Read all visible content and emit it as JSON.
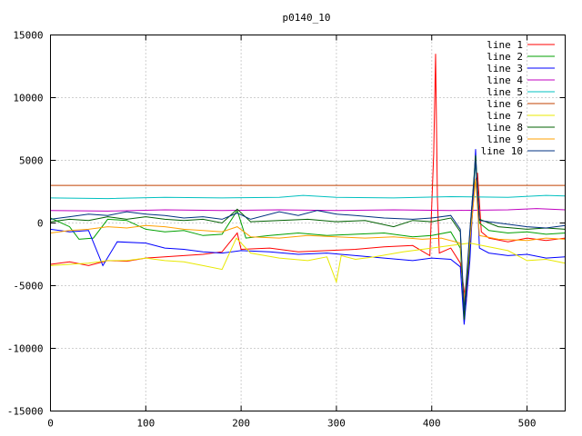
{
  "chart_data": {
    "type": "line",
    "title": "p0140_10",
    "xlabel": "",
    "ylabel": "",
    "xlim": [
      0,
      540
    ],
    "ylim": [
      -15000,
      15000
    ],
    "xticks": [
      0,
      100,
      200,
      300,
      400,
      500
    ],
    "yticks": [
      -15000,
      -10000,
      -5000,
      0,
      5000,
      10000,
      15000
    ],
    "grid": true,
    "legend_position": "top-right",
    "series": [
      {
        "name": "line 1",
        "color": "#ff0000",
        "points": [
          [
            0,
            -3300
          ],
          [
            20,
            -3100
          ],
          [
            40,
            -3400
          ],
          [
            60,
            -3000
          ],
          [
            80,
            -3050
          ],
          [
            100,
            -2800
          ],
          [
            120,
            -2700
          ],
          [
            140,
            -2600
          ],
          [
            160,
            -2500
          ],
          [
            180,
            -2300
          ],
          [
            196,
            -800
          ],
          [
            200,
            -2100
          ],
          [
            230,
            -2000
          ],
          [
            260,
            -2300
          ],
          [
            290,
            -2200
          ],
          [
            320,
            -2100
          ],
          [
            350,
            -1900
          ],
          [
            380,
            -1800
          ],
          [
            398,
            -2600
          ],
          [
            402,
            5500
          ],
          [
            404,
            13500
          ],
          [
            406,
            2000
          ],
          [
            408,
            -2400
          ],
          [
            420,
            -2000
          ],
          [
            430,
            -3200
          ],
          [
            436,
            -6500
          ],
          [
            440,
            -2000
          ],
          [
            445,
            3000
          ],
          [
            448,
            4000
          ],
          [
            452,
            -700
          ],
          [
            460,
            -1200
          ],
          [
            480,
            -1500
          ],
          [
            500,
            -1200
          ],
          [
            520,
            -1400
          ],
          [
            540,
            -1200
          ]
        ]
      },
      {
        "name": "line 2",
        "color": "#00a000",
        "points": [
          [
            0,
            400
          ],
          [
            20,
            -300
          ],
          [
            30,
            -1300
          ],
          [
            45,
            -1200
          ],
          [
            60,
            300
          ],
          [
            80,
            200
          ],
          [
            100,
            -500
          ],
          [
            120,
            -700
          ],
          [
            140,
            -600
          ],
          [
            160,
            -1000
          ],
          [
            180,
            -900
          ],
          [
            196,
            1000
          ],
          [
            205,
            -1200
          ],
          [
            230,
            -1000
          ],
          [
            260,
            -800
          ],
          [
            290,
            -1000
          ],
          [
            320,
            -900
          ],
          [
            350,
            -800
          ],
          [
            380,
            -1100
          ],
          [
            400,
            -1000
          ],
          [
            420,
            -700
          ],
          [
            430,
            -2000
          ],
          [
            434,
            -7000
          ],
          [
            440,
            -2000
          ],
          [
            446,
            5000
          ],
          [
            450,
            0
          ],
          [
            460,
            -600
          ],
          [
            480,
            -800
          ],
          [
            500,
            -700
          ],
          [
            520,
            -900
          ],
          [
            540,
            -800
          ]
        ]
      },
      {
        "name": "line 3",
        "color": "#0000ff",
        "points": [
          [
            0,
            -500
          ],
          [
            20,
            -700
          ],
          [
            40,
            -600
          ],
          [
            55,
            -3400
          ],
          [
            70,
            -1500
          ],
          [
            100,
            -1600
          ],
          [
            120,
            -2000
          ],
          [
            140,
            -2100
          ],
          [
            160,
            -2300
          ],
          [
            180,
            -2400
          ],
          [
            200,
            -2200
          ],
          [
            230,
            -2300
          ],
          [
            260,
            -2500
          ],
          [
            290,
            -2400
          ],
          [
            320,
            -2600
          ],
          [
            350,
            -2800
          ],
          [
            380,
            -3000
          ],
          [
            400,
            -2800
          ],
          [
            420,
            -2900
          ],
          [
            430,
            -3500
          ],
          [
            434,
            -8100
          ],
          [
            440,
            -3000
          ],
          [
            446,
            5900
          ],
          [
            450,
            -2000
          ],
          [
            460,
            -2400
          ],
          [
            480,
            -2600
          ],
          [
            500,
            -2500
          ],
          [
            520,
            -2800
          ],
          [
            540,
            -2700
          ]
        ]
      },
      {
        "name": "line 4",
        "color": "#c000c0",
        "points": [
          [
            0,
            1000
          ],
          [
            60,
            950
          ],
          [
            120,
            1050
          ],
          [
            180,
            1000
          ],
          [
            240,
            1050
          ],
          [
            300,
            1000
          ],
          [
            360,
            1050
          ],
          [
            420,
            1000
          ],
          [
            480,
            1050
          ],
          [
            510,
            1150
          ],
          [
            540,
            1050
          ]
        ]
      },
      {
        "name": "line 5",
        "color": "#00c0c0",
        "points": [
          [
            0,
            2000
          ],
          [
            60,
            1950
          ],
          [
            120,
            2050
          ],
          [
            180,
            2000
          ],
          [
            240,
            2050
          ],
          [
            265,
            2200
          ],
          [
            300,
            2050
          ],
          [
            360,
            2000
          ],
          [
            420,
            2100
          ],
          [
            480,
            2050
          ],
          [
            520,
            2200
          ],
          [
            540,
            2150
          ]
        ]
      },
      {
        "name": "line 6",
        "color": "#c04000",
        "points": [
          [
            0,
            3000
          ],
          [
            540,
            3000
          ]
        ]
      },
      {
        "name": "line 7",
        "color": "#e8e800",
        "points": [
          [
            0,
            -3400
          ],
          [
            20,
            -3300
          ],
          [
            40,
            -3200
          ],
          [
            60,
            -3000
          ],
          [
            80,
            -3000
          ],
          [
            100,
            -2800
          ],
          [
            120,
            -3000
          ],
          [
            140,
            -3100
          ],
          [
            160,
            -3400
          ],
          [
            180,
            -3700
          ],
          [
            195,
            -1200
          ],
          [
            210,
            -2400
          ],
          [
            240,
            -2800
          ],
          [
            270,
            -3000
          ],
          [
            290,
            -2700
          ],
          [
            300,
            -4700
          ],
          [
            305,
            -2600
          ],
          [
            320,
            -2900
          ],
          [
            340,
            -2700
          ],
          [
            370,
            -2300
          ],
          [
            400,
            -2000
          ],
          [
            420,
            -1800
          ],
          [
            440,
            -1600
          ],
          [
            460,
            -1900
          ],
          [
            480,
            -2200
          ],
          [
            500,
            -3000
          ],
          [
            520,
            -2900
          ],
          [
            540,
            -3200
          ]
        ]
      },
      {
        "name": "line 8",
        "color": "#006000",
        "points": [
          [
            0,
            100
          ],
          [
            20,
            300
          ],
          [
            40,
            200
          ],
          [
            60,
            500
          ],
          [
            80,
            300
          ],
          [
            100,
            500
          ],
          [
            120,
            300
          ],
          [
            140,
            200
          ],
          [
            160,
            300
          ],
          [
            180,
            0
          ],
          [
            196,
            1100
          ],
          [
            210,
            100
          ],
          [
            240,
            200
          ],
          [
            270,
            300
          ],
          [
            300,
            100
          ],
          [
            330,
            200
          ],
          [
            360,
            -300
          ],
          [
            380,
            200
          ],
          [
            400,
            100
          ],
          [
            420,
            400
          ],
          [
            430,
            -700
          ],
          [
            434,
            -7700
          ],
          [
            440,
            -800
          ],
          [
            446,
            5400
          ],
          [
            450,
            300
          ],
          [
            470,
            -300
          ],
          [
            500,
            -500
          ],
          [
            520,
            -400
          ],
          [
            540,
            -500
          ]
        ]
      },
      {
        "name": "line 9",
        "color": "#ffa000",
        "points": [
          [
            0,
            -800
          ],
          [
            20,
            -600
          ],
          [
            40,
            -500
          ],
          [
            60,
            -300
          ],
          [
            80,
            -400
          ],
          [
            100,
            -200
          ],
          [
            120,
            -300
          ],
          [
            140,
            -500
          ],
          [
            160,
            -600
          ],
          [
            180,
            -700
          ],
          [
            196,
            -300
          ],
          [
            210,
            -1100
          ],
          [
            240,
            -1200
          ],
          [
            270,
            -1000
          ],
          [
            300,
            -1100
          ],
          [
            330,
            -1200
          ],
          [
            360,
            -1100
          ],
          [
            390,
            -1300
          ],
          [
            410,
            -1200
          ],
          [
            430,
            -1600
          ],
          [
            434,
            -6300
          ],
          [
            440,
            -1500
          ],
          [
            446,
            3500
          ],
          [
            450,
            -1000
          ],
          [
            470,
            -1300
          ],
          [
            500,
            -1400
          ],
          [
            520,
            -1200
          ],
          [
            540,
            -1300
          ]
        ]
      },
      {
        "name": "line 10",
        "color": "#003080",
        "points": [
          [
            0,
            300
          ],
          [
            20,
            500
          ],
          [
            40,
            700
          ],
          [
            60,
            600
          ],
          [
            80,
            900
          ],
          [
            100,
            700
          ],
          [
            120,
            600
          ],
          [
            140,
            400
          ],
          [
            160,
            500
          ],
          [
            180,
            300
          ],
          [
            196,
            800
          ],
          [
            210,
            300
          ],
          [
            240,
            900
          ],
          [
            260,
            600
          ],
          [
            280,
            1000
          ],
          [
            300,
            700
          ],
          [
            320,
            600
          ],
          [
            350,
            400
          ],
          [
            380,
            300
          ],
          [
            400,
            400
          ],
          [
            420,
            600
          ],
          [
            430,
            -500
          ],
          [
            434,
            -7000
          ],
          [
            440,
            -600
          ],
          [
            446,
            5000
          ],
          [
            450,
            200
          ],
          [
            470,
            0
          ],
          [
            500,
            -300
          ],
          [
            520,
            -400
          ],
          [
            540,
            -200
          ]
        ]
      }
    ]
  }
}
